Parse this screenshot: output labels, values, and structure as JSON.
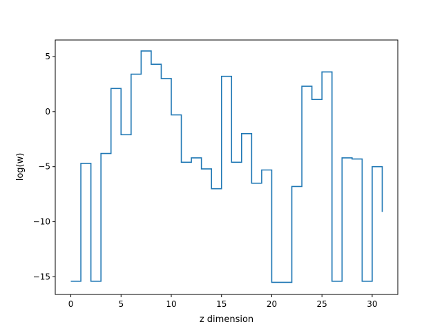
{
  "chart_data": {
    "type": "line",
    "drawstyle": "steps-post",
    "title": "",
    "xlabel": "z dimension",
    "ylabel": "log(w)",
    "xlim": [
      -1.55,
      32.55
    ],
    "ylim": [
      -16.6,
      6.5
    ],
    "xticks": [
      0,
      5,
      10,
      15,
      20,
      25,
      30
    ],
    "yticks": [
      5,
      0,
      -5,
      -10,
      -15
    ],
    "xtick_labels": [
      "0",
      "5",
      "10",
      "15",
      "20",
      "25",
      "30"
    ],
    "ytick_labels": [
      "5",
      "0",
      "−5",
      "−10",
      "−15"
    ],
    "grid": false,
    "line_color": "#1f77b4",
    "series": [
      {
        "x": [
          0,
          1,
          2,
          3,
          4,
          5,
          6,
          7,
          8,
          9,
          10,
          11,
          12,
          13,
          14,
          15,
          16,
          17,
          18,
          19,
          20,
          21,
          22,
          23,
          24,
          25,
          26,
          27,
          28,
          29,
          30,
          31
        ],
        "values": [
          -15.4,
          -4.7,
          -15.4,
          -3.8,
          2.1,
          -2.1,
          3.4,
          5.5,
          4.3,
          3.0,
          -0.3,
          -4.6,
          -4.2,
          -5.2,
          -7.0,
          3.2,
          -4.6,
          -2.0,
          -6.5,
          -5.3,
          -15.5,
          -15.5,
          -6.8,
          2.3,
          1.1,
          3.6,
          -15.4,
          -4.2,
          -4.3,
          -15.4,
          -5.0,
          -9.1
        ]
      }
    ]
  }
}
